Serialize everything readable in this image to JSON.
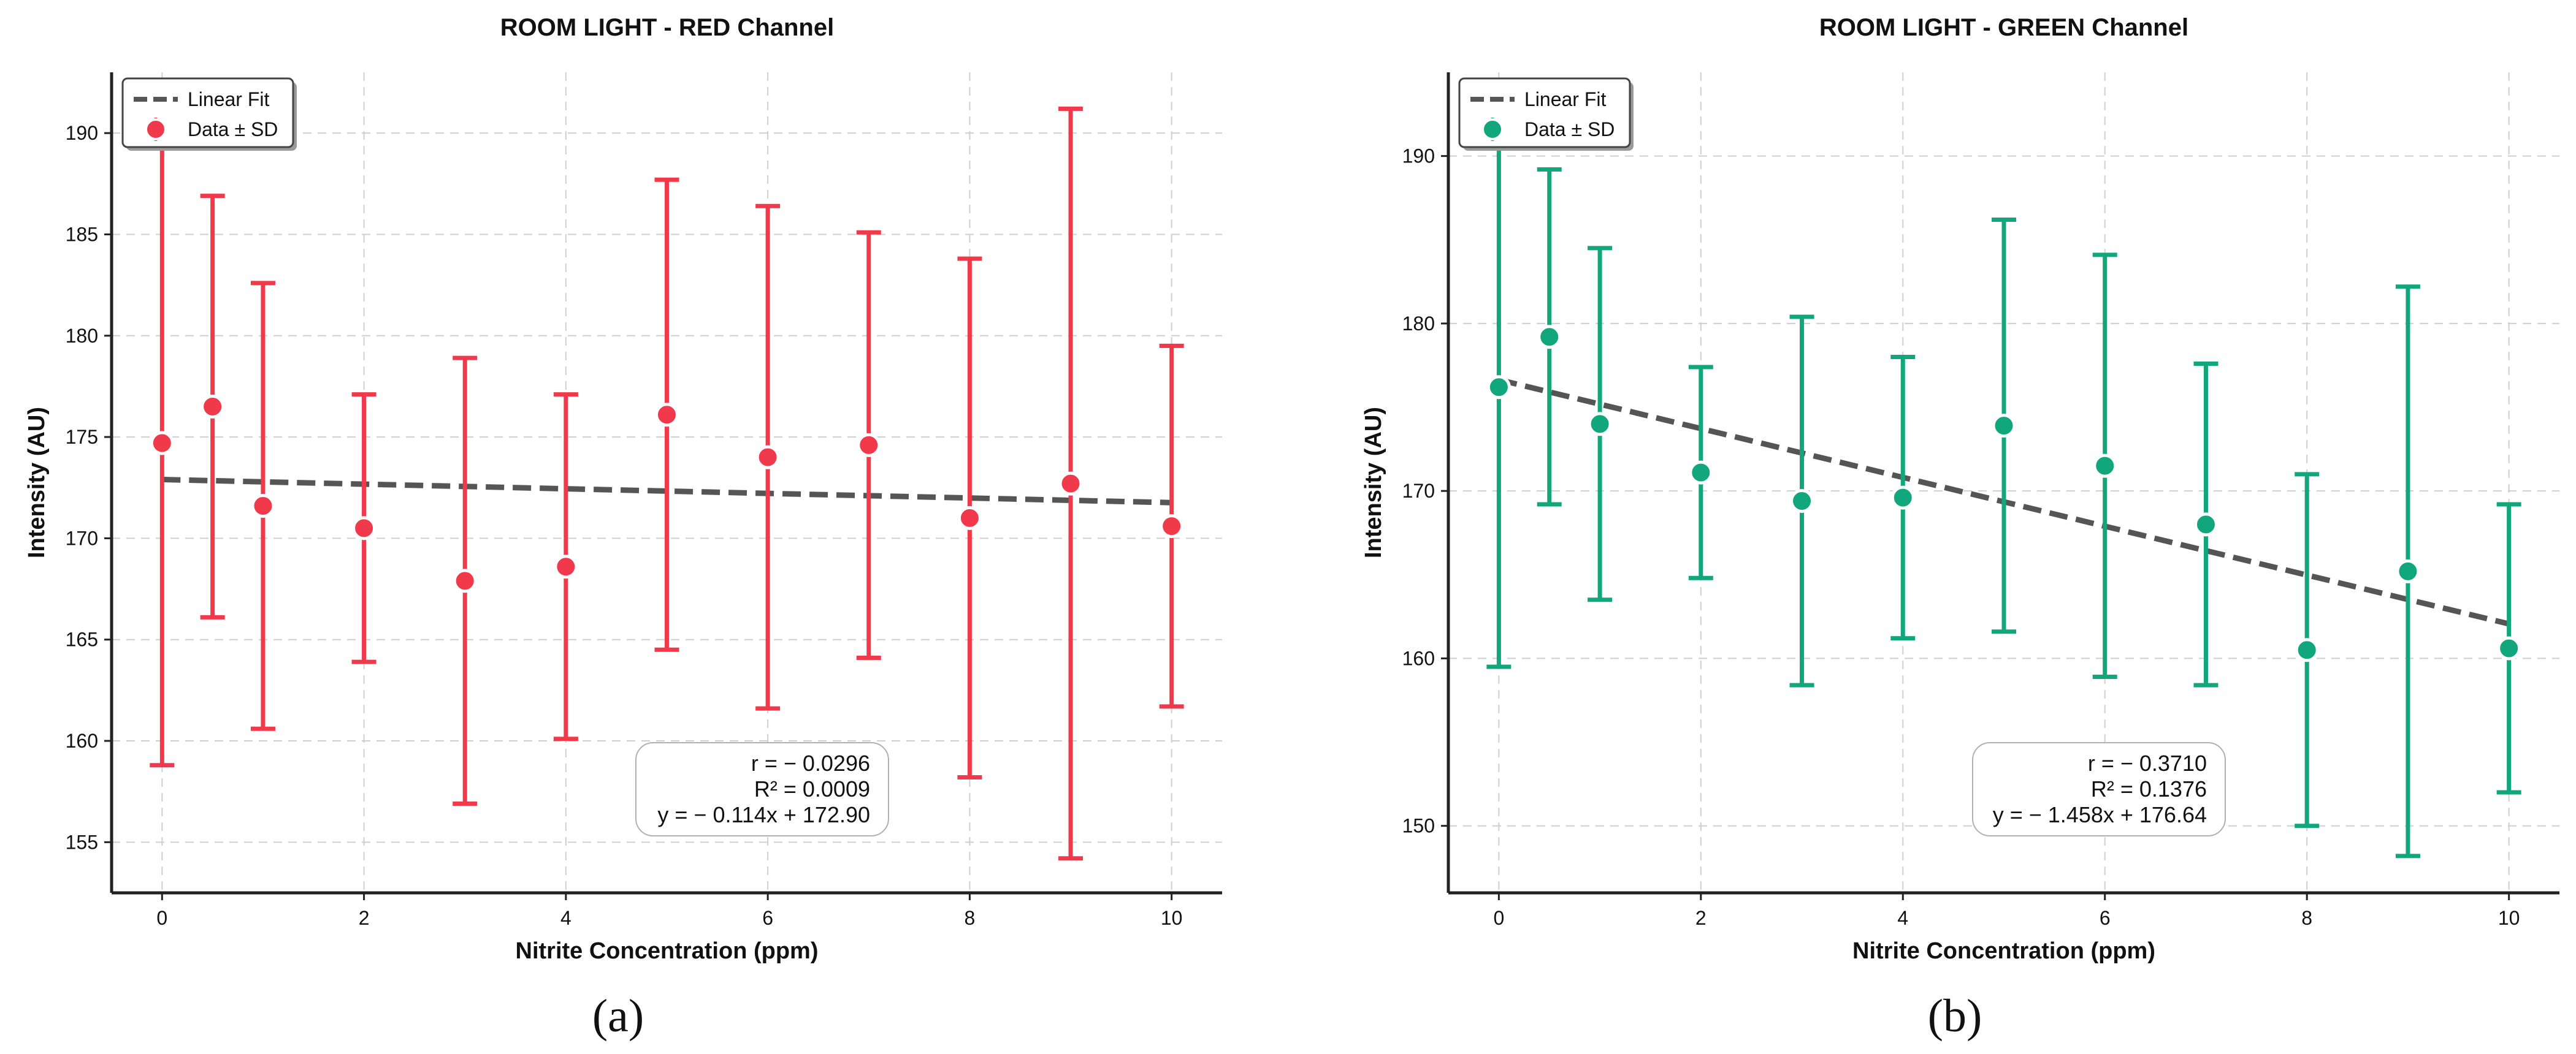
{
  "chart_data": [
    {
      "type": "scatter",
      "title": "ROOM LIGHT - RED Channel",
      "xlabel": "Nitrite Concentration (ppm)",
      "ylabel": "Intensity (AU)",
      "panel_label": "(a)",
      "color": "#f0394a",
      "xlim": [
        -0.5,
        10.5
      ],
      "ylim": [
        152.5,
        193
      ],
      "xticks": [
        0,
        2,
        4,
        6,
        8,
        10
      ],
      "yticks": [
        155,
        160,
        165,
        170,
        175,
        180,
        185,
        190
      ],
      "grid": true,
      "legend": {
        "position": "top-left",
        "entries": [
          "Linear Fit",
          "Data ± SD"
        ]
      },
      "x": [
        0,
        0.5,
        1,
        2,
        3,
        4,
        5,
        6,
        7,
        8,
        9,
        10
      ],
      "y": [
        174.7,
        176.5,
        171.6,
        170.5,
        167.9,
        168.6,
        176.1,
        174.0,
        174.6,
        171.0,
        172.7,
        170.6
      ],
      "sd": [
        15.9,
        10.4,
        11.0,
        6.6,
        11.0,
        8.5,
        11.6,
        12.4,
        10.5,
        12.8,
        18.5,
        8.9
      ],
      "fit": {
        "slope": -0.114,
        "intercept": 172.9
      },
      "stats": {
        "r": "r = − 0.0296",
        "r2": "R² = 0.0009",
        "eq": "y = − 0.114x + 172.90"
      }
    },
    {
      "type": "scatter",
      "title": "ROOM LIGHT - GREEN Channel",
      "xlabel": "Nitrite Concentration (ppm)",
      "ylabel": "Intensity (AU)",
      "panel_label": "(b)",
      "color": "#12a67c",
      "xlim": [
        -0.5,
        10.5
      ],
      "ylim": [
        146,
        195
      ],
      "xticks": [
        0,
        2,
        4,
        6,
        8,
        10
      ],
      "yticks": [
        150,
        160,
        170,
        180,
        190
      ],
      "grid": true,
      "legend": {
        "position": "top-left",
        "entries": [
          "Linear Fit",
          "Data ± SD"
        ]
      },
      "x": [
        0,
        0.5,
        1,
        2,
        3,
        4,
        5,
        6,
        7,
        8,
        9,
        10
      ],
      "y": [
        176.2,
        179.2,
        174.0,
        171.1,
        169.4,
        169.6,
        173.9,
        171.5,
        168.0,
        160.5,
        165.2,
        160.6
      ],
      "sd": [
        16.7,
        10.0,
        10.5,
        6.3,
        11.0,
        8.4,
        12.3,
        12.6,
        9.6,
        10.5,
        17.0,
        8.6
      ],
      "fit": {
        "slope": -1.458,
        "intercept": 176.64
      },
      "stats": {
        "r": "r = − 0.3710",
        "r2": "R² = 0.1376",
        "eq": "y = − 1.458x + 176.64"
      }
    }
  ]
}
